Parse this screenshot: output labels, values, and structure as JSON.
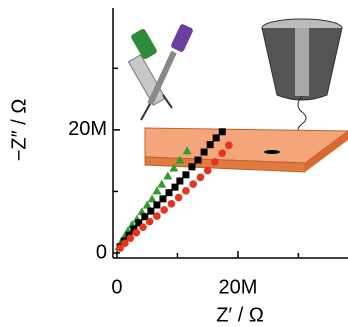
{
  "chart_data": {
    "type": "scatter",
    "x_label": "Z′ / Ω",
    "y_label": "−Z″ / Ω",
    "xlim": [
      -660000,
      38200000
    ],
    "ylim": [
      -810000,
      39800000
    ],
    "xticks": [
      0,
      {
        "value": 20000000,
        "label": "20M"
      }
    ],
    "yticks": [
      0,
      {
        "value": 20000000,
        "label": "20M"
      }
    ],
    "xminor_ticks": [
      10000000,
      30000000
    ],
    "yminor_ticks": [
      10000000,
      30000000
    ],
    "series": [
      {
        "color": "#2e9e2e",
        "marker": "triangle",
        "x": [
          300000,
          700000,
          1200000,
          1800000,
          2500000,
          3300000,
          4100000,
          5000000,
          5800000,
          6600000,
          7400000,
          8400000,
          9400000,
          10400000,
          11600000
        ],
        "values": [
          1000000,
          1800000,
          2600000,
          3600000,
          4600000,
          5500000,
          6700000,
          7800000,
          8800000,
          10100000,
          11200000,
          12500000,
          13800000,
          15100000,
          16600000
        ]
      },
      {
        "color": "#000000",
        "marker": "square",
        "x": [
          500000,
          1200000,
          2000000,
          2800000,
          3600000,
          4600000,
          5600000,
          6600000,
          7600000,
          8600000,
          9600000,
          10400000,
          11400000,
          12400000,
          13400000,
          14400000,
          15400000,
          16400000,
          17400000
        ],
        "values": [
          1000000,
          1950000,
          2900000,
          3900000,
          4900000,
          5900000,
          6800000,
          7800000,
          8800000,
          9800000,
          10700000,
          11700000,
          12700000,
          14000000,
          15100000,
          16400000,
          17600000,
          18700000,
          19700000
        ]
      },
      {
        "color": "#e8321e",
        "marker": "circle",
        "x": [
          500000,
          1300000,
          2200000,
          3200000,
          4300000,
          5400000,
          6600000,
          7800000,
          9000000,
          10200000,
          11400000,
          12600000,
          13800000,
          15000000,
          16200000,
          17400000,
          18500000
        ],
        "values": [
          800000,
          1600000,
          2400000,
          3300000,
          4200000,
          5100000,
          6000000,
          7000000,
          8000000,
          9000000,
          10100000,
          11200000,
          12300000,
          13400000,
          14800000,
          16200000,
          17500000
        ]
      }
    ]
  }
}
